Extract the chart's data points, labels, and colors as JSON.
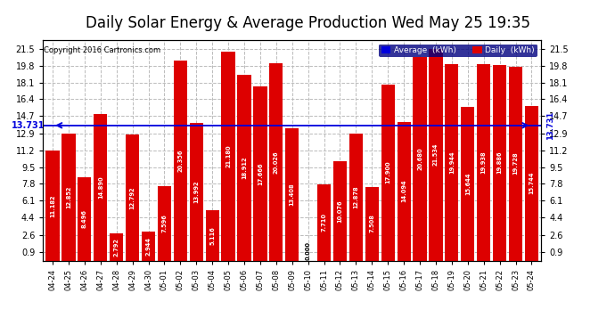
{
  "title": "Daily Solar Energy & Average Production Wed May 25 19:35",
  "copyright": "Copyright 2016 Cartronics.com",
  "categories": [
    "04-24",
    "04-25",
    "04-26",
    "04-27",
    "04-28",
    "04-29",
    "04-30",
    "05-01",
    "05-02",
    "05-03",
    "05-04",
    "05-05",
    "05-06",
    "05-07",
    "05-08",
    "05-09",
    "05-10",
    "05-11",
    "05-12",
    "05-13",
    "05-14",
    "05-15",
    "05-16",
    "05-17",
    "05-18",
    "05-19",
    "05-20",
    "05-21",
    "05-22",
    "05-23",
    "05-24"
  ],
  "values": [
    11.182,
    12.852,
    8.496,
    14.89,
    2.792,
    12.792,
    2.944,
    7.596,
    20.356,
    13.992,
    5.116,
    21.18,
    18.912,
    17.666,
    20.026,
    13.408,
    0.0,
    7.71,
    10.076,
    12.878,
    7.508,
    17.9,
    14.094,
    20.68,
    21.534,
    19.944,
    15.644,
    19.938,
    19.886,
    19.728,
    15.744
  ],
  "average": 13.731,
  "bar_color": "#dd0000",
  "average_color": "#0000dd",
  "background_color": "#ffffff",
  "plot_bg_color": "#ffffff",
  "grid_color": "#bbbbbb",
  "title_fontsize": 12,
  "ytick_values": [
    21.5,
    19.8,
    18.1,
    16.4,
    14.7,
    12.9,
    11.2,
    9.5,
    7.8,
    6.1,
    4.4,
    2.6,
    0.9
  ],
  "ymax": 22.4,
  "ymin": 0.0,
  "legend_avg_label": "Average  (kWh)",
  "legend_daily_label": "Daily  (kWh)"
}
